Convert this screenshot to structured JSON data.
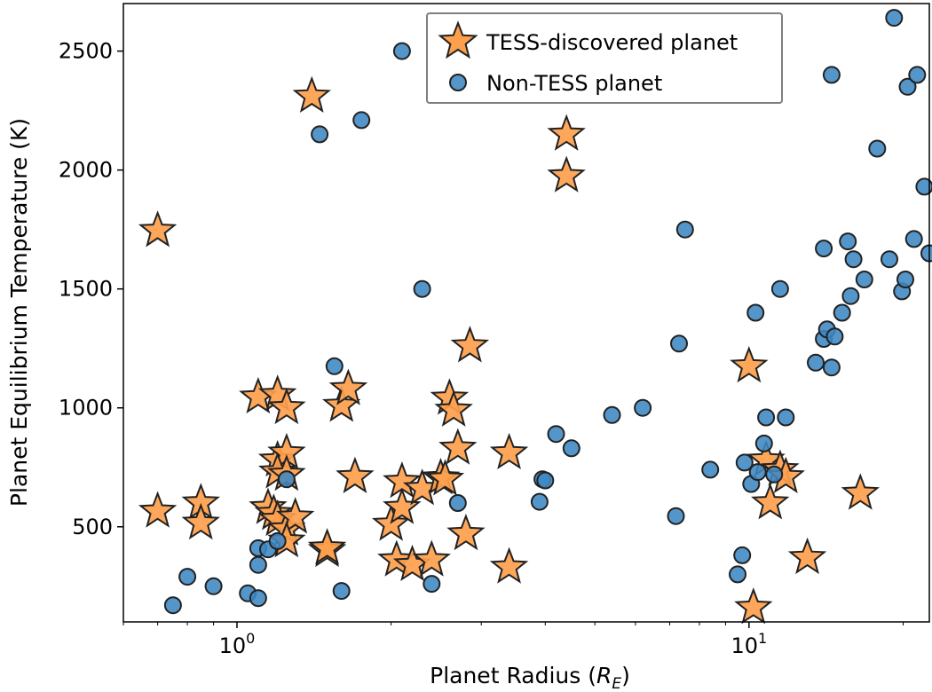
{
  "chart_data": {
    "type": "scatter",
    "title": "",
    "xlabel": "Planet Radius",
    "xlabel_unit": "R",
    "xlabel_unit_sub": "E",
    "ylabel": "Planet Equilibrium Temperature (K)",
    "x_scale": "log",
    "xlim": [
      0.6,
      22.5
    ],
    "ylim": [
      100,
      2700
    ],
    "xticks": [
      {
        "value": 1,
        "base": "10",
        "exp": "0"
      },
      {
        "value": 10,
        "base": "10",
        "exp": "1"
      }
    ],
    "yticks": [
      {
        "value": 500,
        "label": "500"
      },
      {
        "value": 1000,
        "label": "1000"
      },
      {
        "value": 1500,
        "label": "1500"
      },
      {
        "value": 2000,
        "label": "2000"
      },
      {
        "value": 2500,
        "label": "2500"
      }
    ],
    "grid": false,
    "legend_position": "top-center",
    "colors": {
      "tess": "#fe9f4c",
      "nontess": "#3d88c3",
      "edge": "#222222"
    },
    "series": [
      {
        "name": "TESS-discovered planet",
        "marker": "star",
        "points": [
          [
            0.7,
            1745
          ],
          [
            0.7,
            565
          ],
          [
            0.85,
            600
          ],
          [
            0.85,
            515
          ],
          [
            1.1,
            1045
          ],
          [
            1.2,
            1055
          ],
          [
            1.25,
            1000
          ],
          [
            1.2,
            780
          ],
          [
            1.25,
            810
          ],
          [
            1.2,
            730
          ],
          [
            1.25,
            720
          ],
          [
            1.15,
            580
          ],
          [
            1.18,
            555
          ],
          [
            1.2,
            530
          ],
          [
            1.25,
            490
          ],
          [
            1.3,
            540
          ],
          [
            1.25,
            440
          ],
          [
            1.4,
            2310
          ],
          [
            1.5,
            400
          ],
          [
            1.5,
            410
          ],
          [
            1.6,
            1010
          ],
          [
            1.65,
            1080
          ],
          [
            1.7,
            710
          ],
          [
            2.0,
            510
          ],
          [
            2.1,
            690
          ],
          [
            2.1,
            580
          ],
          [
            2.05,
            360
          ],
          [
            2.2,
            340
          ],
          [
            2.3,
            660
          ],
          [
            2.4,
            360
          ],
          [
            2.5,
            705
          ],
          [
            2.55,
            700
          ],
          [
            2.6,
            1040
          ],
          [
            2.65,
            990
          ],
          [
            2.7,
            830
          ],
          [
            2.8,
            470
          ],
          [
            2.85,
            1260
          ],
          [
            3.4,
            810
          ],
          [
            3.4,
            330
          ],
          [
            4.4,
            2150
          ],
          [
            4.4,
            1975
          ],
          [
            10.0,
            1175
          ],
          [
            10.2,
            160
          ],
          [
            10.8,
            780
          ],
          [
            11.0,
            600
          ],
          [
            11.5,
            740
          ],
          [
            11.8,
            710
          ],
          [
            13.0,
            370
          ],
          [
            16.5,
            640
          ]
        ]
      },
      {
        "name": "Non-TESS planet",
        "marker": "circle",
        "points": [
          [
            0.75,
            170
          ],
          [
            0.8,
            290
          ],
          [
            0.9,
            250
          ],
          [
            1.05,
            220
          ],
          [
            1.1,
            200
          ],
          [
            1.1,
            340
          ],
          [
            1.1,
            410
          ],
          [
            1.15,
            405
          ],
          [
            1.2,
            440
          ],
          [
            1.25,
            700
          ],
          [
            1.45,
            2150
          ],
          [
            1.55,
            1175
          ],
          [
            1.6,
            230
          ],
          [
            1.75,
            2210
          ],
          [
            2.1,
            2500
          ],
          [
            2.3,
            1500
          ],
          [
            2.4,
            260
          ],
          [
            2.7,
            600
          ],
          [
            3.9,
            605
          ],
          [
            3.95,
            700
          ],
          [
            4.0,
            695
          ],
          [
            4.2,
            890
          ],
          [
            4.5,
            830
          ],
          [
            5.4,
            970
          ],
          [
            6.2,
            1000
          ],
          [
            7.2,
            545
          ],
          [
            7.3,
            1270
          ],
          [
            7.5,
            1750
          ],
          [
            8.4,
            740
          ],
          [
            9.5,
            300
          ],
          [
            9.7,
            380
          ],
          [
            9.8,
            770
          ],
          [
            10.1,
            680
          ],
          [
            10.3,
            1400
          ],
          [
            10.4,
            730
          ],
          [
            10.7,
            850
          ],
          [
            10.8,
            960
          ],
          [
            11.2,
            720
          ],
          [
            11.5,
            1500
          ],
          [
            11.8,
            960
          ],
          [
            13.5,
            1190
          ],
          [
            14.0,
            1670
          ],
          [
            14.0,
            1290
          ],
          [
            14.2,
            1330
          ],
          [
            14.5,
            2400
          ],
          [
            14.5,
            1170
          ],
          [
            14.7,
            1300
          ],
          [
            15.2,
            1400
          ],
          [
            15.6,
            1700
          ],
          [
            15.8,
            1470
          ],
          [
            16.0,
            1625
          ],
          [
            16.8,
            1540
          ],
          [
            17.8,
            2090
          ],
          [
            18.8,
            1625
          ],
          [
            19.2,
            2640
          ],
          [
            19.9,
            1490
          ],
          [
            20.2,
            1540
          ],
          [
            20.4,
            2350
          ],
          [
            21.0,
            1710
          ],
          [
            21.3,
            2400
          ],
          [
            22.0,
            1930
          ],
          [
            22.5,
            1650
          ]
        ]
      }
    ]
  }
}
